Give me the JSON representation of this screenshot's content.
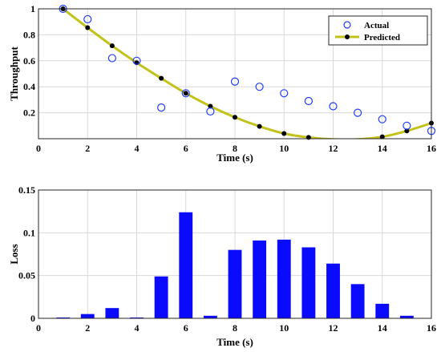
{
  "chart_data": [
    {
      "type": "line",
      "xlabel": "Time (s)",
      "ylabel": "Throughput",
      "xlim": [
        0,
        16
      ],
      "ylim": [
        0,
        1
      ],
      "xticks": [
        "0",
        "2",
        "4",
        "6",
        "8",
        "10",
        "12",
        "14",
        "16"
      ],
      "yticks": [
        "0.2",
        "0.4",
        "0.6",
        "0.8",
        "1"
      ],
      "grid": true,
      "legend_position": "top-right",
      "series": [
        {
          "name": "Actual",
          "style": "open-circle",
          "color": "#1f3cff",
          "x": [
            1,
            2,
            3,
            4,
            5,
            6,
            7,
            8,
            9,
            10,
            11,
            12,
            13,
            14,
            15,
            16
          ],
          "y": [
            1.0,
            0.92,
            0.62,
            0.6,
            0.24,
            0.35,
            0.21,
            0.44,
            0.4,
            0.35,
            0.29,
            0.25,
            0.2,
            0.15,
            0.1,
            0.06
          ]
        },
        {
          "name": "Predicted",
          "style": "line-with-dots",
          "color": "#c2c21a",
          "marker_color": "#000000",
          "x": [
            1,
            2,
            3,
            4,
            5,
            6,
            7,
            8,
            9,
            10,
            11,
            12,
            13,
            14,
            15,
            16
          ],
          "y": [
            1.0,
            0.855,
            0.715,
            0.585,
            0.465,
            0.35,
            0.25,
            0.165,
            0.095,
            0.04,
            0.01,
            -0.005,
            -0.005,
            0.015,
            0.06,
            0.12
          ]
        }
      ]
    },
    {
      "type": "bar",
      "xlabel": "Time (s)",
      "ylabel": "Loss",
      "xlim": [
        0,
        16
      ],
      "ylim": [
        0,
        0.15
      ],
      "xticks": [
        "0",
        "2",
        "4",
        "6",
        "8",
        "10",
        "12",
        "14",
        "16"
      ],
      "yticks": [
        "0",
        "0.05",
        "0.1",
        "0.15"
      ],
      "grid": true,
      "color": "#0a0aff",
      "x": [
        1,
        2,
        3,
        4,
        5,
        6,
        7,
        8,
        9,
        10,
        11,
        12,
        13,
        14,
        15
      ],
      "values": [
        0.001,
        0.005,
        0.012,
        0.001,
        0.049,
        0.124,
        0.003,
        0.08,
        0.091,
        0.092,
        0.083,
        0.064,
        0.04,
        0.017,
        0.003
      ]
    }
  ]
}
